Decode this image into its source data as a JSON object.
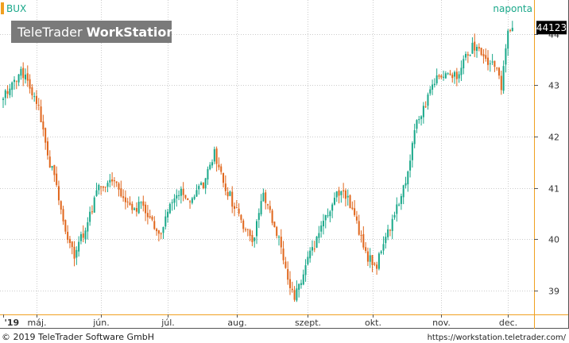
{
  "header": {
    "symbol": "BUX",
    "period": "naponta",
    "watermark_light": "TeleTrader ",
    "watermark_bold": "WorkStation"
  },
  "footer": {
    "copyright": "© 2019 TeleTrader Software GmbH",
    "url": "https://workstation.teletrader.com/"
  },
  "colors": {
    "up": "#1aa88a",
    "down": "#e0661c",
    "accent": "#f0a020",
    "grid": "#cccccc",
    "label_bg": "#000000"
  },
  "chart_data": {
    "type": "candlestick",
    "instrument": "BUX",
    "interval": "naponta",
    "ylim": [
      38.6,
      44.6
    ],
    "ytick_values": [
      39,
      40,
      41,
      42,
      43,
      44
    ],
    "ytick_labels": [
      "39",
      "40",
      "41",
      "42",
      "43",
      "44"
    ],
    "last_value_label": "44123",
    "last_value": 44.123,
    "xlim": [
      0,
      233
    ],
    "xticks": [
      {
        "label": "'19",
        "idx": 0
      },
      {
        "label": "máj.",
        "idx": 15
      },
      {
        "label": "jún.",
        "idx": 44
      },
      {
        "label": "júl.",
        "idx": 74
      },
      {
        "label": "aug.",
        "idx": 105
      },
      {
        "label": "szept.",
        "idx": 137
      },
      {
        "label": "okt.",
        "idx": 166
      },
      {
        "label": "nov.",
        "idx": 197
      },
      {
        "label": "dec.",
        "idx": 227
      }
    ],
    "segments": [
      [
        0,
        42.85
      ],
      [
        5,
        43.0
      ],
      [
        8,
        43.3
      ],
      [
        12,
        42.9
      ],
      [
        16,
        42.5
      ],
      [
        19,
        41.8
      ],
      [
        24,
        41.0
      ],
      [
        27,
        40.3
      ],
      [
        32,
        39.7
      ],
      [
        36,
        40.1
      ],
      [
        42,
        40.9
      ],
      [
        46,
        41.1
      ],
      [
        52,
        41.0
      ],
      [
        58,
        40.6
      ],
      [
        63,
        40.7
      ],
      [
        70,
        40.1
      ],
      [
        75,
        40.6
      ],
      [
        80,
        41.0
      ],
      [
        85,
        40.7
      ],
      [
        90,
        41.1
      ],
      [
        95,
        41.7
      ],
      [
        100,
        41.0
      ],
      [
        107,
        40.4
      ],
      [
        112,
        39.95
      ],
      [
        117,
        40.9
      ],
      [
        122,
        40.3
      ],
      [
        126,
        39.6
      ],
      [
        131,
        38.8
      ],
      [
        136,
        39.5
      ],
      [
        142,
        40.1
      ],
      [
        148,
        40.7
      ],
      [
        152,
        41.0
      ],
      [
        158,
        40.5
      ],
      [
        163,
        39.7
      ],
      [
        168,
        39.5
      ],
      [
        172,
        40.0
      ],
      [
        177,
        40.6
      ],
      [
        181,
        41.2
      ],
      [
        186,
        42.3
      ],
      [
        190,
        42.6
      ],
      [
        194,
        43.1
      ],
      [
        199,
        43.3
      ],
      [
        204,
        43.2
      ],
      [
        208,
        43.6
      ],
      [
        213,
        43.8
      ],
      [
        217,
        43.5
      ],
      [
        221,
        43.4
      ],
      [
        224,
        43.0
      ],
      [
        227,
        44.0
      ],
      [
        229,
        44.12
      ]
    ],
    "seed": 73
  }
}
